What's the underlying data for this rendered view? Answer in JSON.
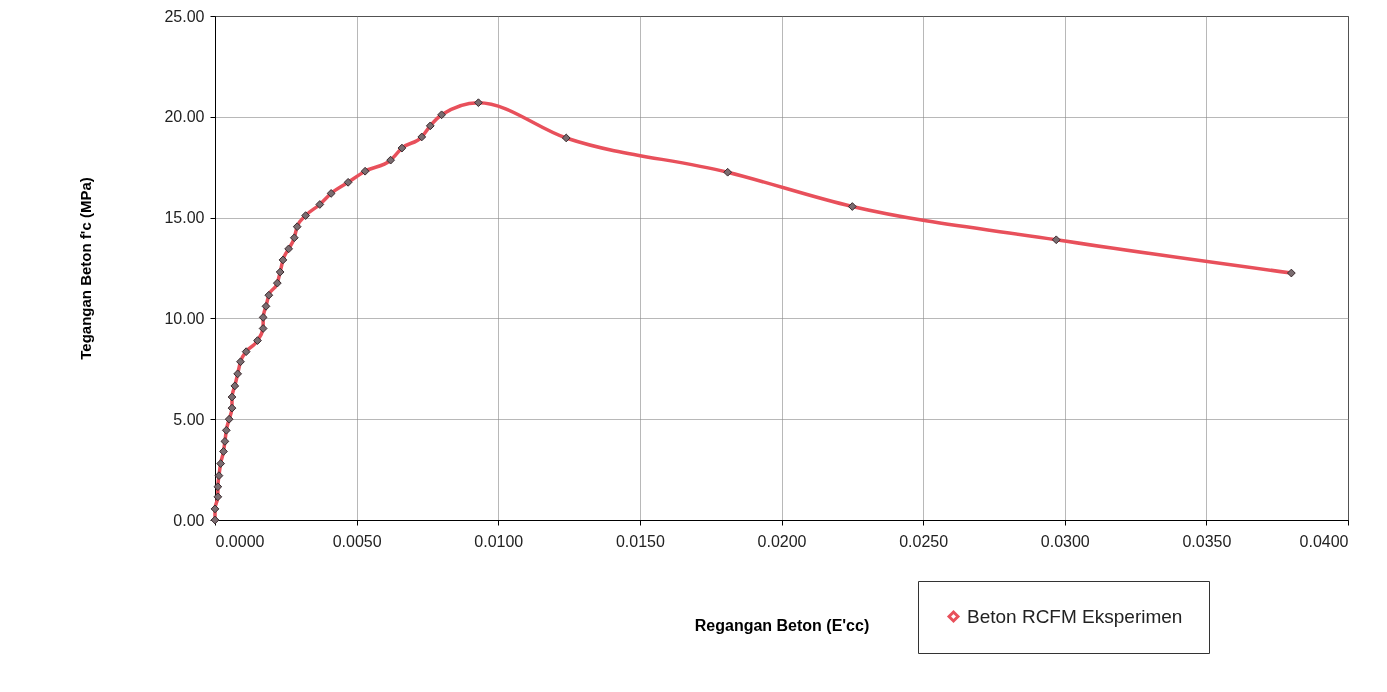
{
  "chart_data": {
    "type": "line",
    "xlabel": "Regangan Beton (E'cc)",
    "ylabel": "Tegangan Beton f'c (MPa)",
    "x": [
      0,
      0,
      0.0001,
      0.0001,
      0.00014,
      0.0002,
      0.0003,
      0.00035,
      0.0004,
      0.0005,
      0.0006,
      0.0006,
      0.0007,
      0.0008,
      0.0009,
      0.0011,
      0.0015,
      0.0017,
      0.0017,
      0.0018,
      0.0019,
      0.0022,
      0.0023,
      0.0024,
      0.0026,
      0.0028,
      0.0029,
      0.0032,
      0.0037,
      0.0041,
      0.0047,
      0.0053,
      0.0062,
      0.0066,
      0.0073,
      0.0076,
      0.008,
      0.0093,
      0.0124,
      0.0181,
      0.0225,
      0.0297,
      0.038
    ],
    "series": [
      {
        "name": "Beton RCFM Eksperimen",
        "color": "#e8505b",
        "values": [
          0,
          0.55,
          1.15,
          1.65,
          2.2,
          2.8,
          3.4,
          3.9,
          4.45,
          5.0,
          5.55,
          6.1,
          6.65,
          7.25,
          7.85,
          8.35,
          8.9,
          9.5,
          10.05,
          10.6,
          11.15,
          11.75,
          12.3,
          12.9,
          13.45,
          14.0,
          14.55,
          15.1,
          15.65,
          16.2,
          16.75,
          17.3,
          17.85,
          18.45,
          19.0,
          19.55,
          20.1,
          20.7,
          18.95,
          17.25,
          15.55,
          13.9,
          12.25
        ]
      }
    ],
    "xlim": [
      0,
      0.04
    ],
    "ylim": [
      0,
      25
    ],
    "xticks": [
      {
        "value": 0,
        "label": "0.0000"
      },
      {
        "value": 0.005,
        "label": "0.0050"
      },
      {
        "value": 0.01,
        "label": "0.0100"
      },
      {
        "value": 0.015,
        "label": "0.0150"
      },
      {
        "value": 0.02,
        "label": "0.0200"
      },
      {
        "value": 0.025,
        "label": "0.0250"
      },
      {
        "value": 0.03,
        "label": "0.0300"
      },
      {
        "value": 0.035,
        "label": "0.0350"
      },
      {
        "value": 0.04,
        "label": "0.0400"
      }
    ],
    "yticks": [
      {
        "value": 0,
        "label": "0.00"
      },
      {
        "value": 5,
        "label": "5.00"
      },
      {
        "value": 10,
        "label": "10.00"
      },
      {
        "value": 15,
        "label": "15.00"
      },
      {
        "value": 20,
        "label": "20.00"
      },
      {
        "value": 25,
        "label": "25.00"
      }
    ],
    "grid": true,
    "legend": "bottom right",
    "marker": "diamond",
    "line_style": "solid"
  }
}
